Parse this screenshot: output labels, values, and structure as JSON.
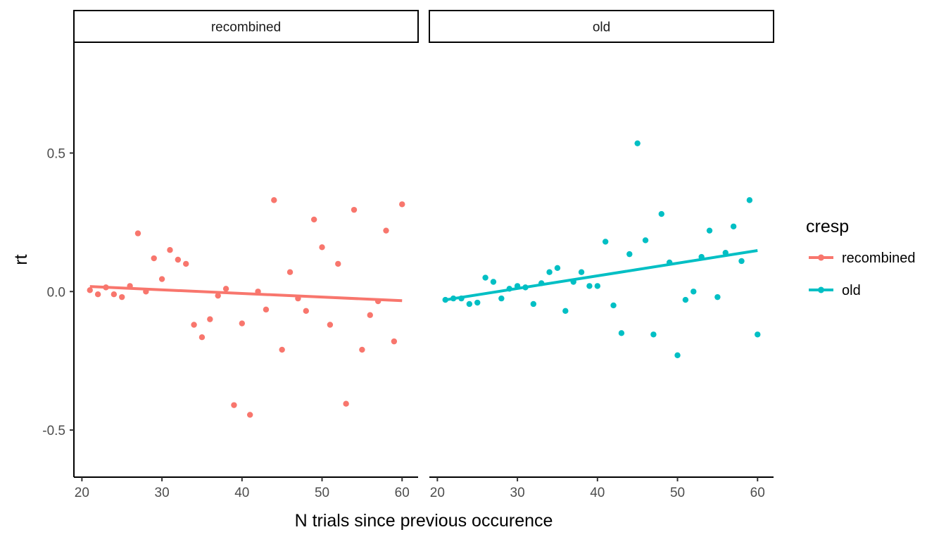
{
  "chart_data": {
    "type": "scatter",
    "xlabel": "N trials since previous occurence",
    "ylabel": "rt",
    "xlim": [
      19,
      62
    ],
    "ylim": [
      -0.67,
      0.9
    ],
    "x_ticks": [
      20,
      30,
      40,
      50,
      60
    ],
    "y_ticks": [
      -0.5,
      0.0,
      0.5
    ],
    "x_tick_labels": [
      "20",
      "30",
      "40",
      "50",
      "60"
    ],
    "y_tick_labels": [
      "-0.5",
      "0.0",
      "0.5"
    ],
    "grid": false,
    "legend_position": "right",
    "legend": {
      "title": "cresp",
      "entries": [
        {
          "label": "recombined",
          "color": "#F8766D"
        },
        {
          "label": "old",
          "color": "#00BFC4"
        }
      ]
    },
    "panels": [
      {
        "strip_label": "recombined",
        "series": "recombined",
        "color": "#F8766D",
        "points": [
          [
            21,
            0.005
          ],
          [
            22,
            -0.01
          ],
          [
            23,
            0.015
          ],
          [
            24,
            -0.01
          ],
          [
            25,
            -0.02
          ],
          [
            26,
            0.02
          ],
          [
            27,
            0.21
          ],
          [
            28,
            0.0
          ],
          [
            29,
            0.12
          ],
          [
            30,
            0.045
          ],
          [
            31,
            0.15
          ],
          [
            32,
            0.115
          ],
          [
            33,
            0.1
          ],
          [
            34,
            -0.12
          ],
          [
            35,
            -0.165
          ],
          [
            36,
            -0.1
          ],
          [
            37,
            -0.015
          ],
          [
            38,
            0.01
          ],
          [
            39,
            -0.41
          ],
          [
            40,
            -0.115
          ],
          [
            41,
            -0.445
          ],
          [
            42,
            0.0
          ],
          [
            43,
            -0.065
          ],
          [
            44,
            0.33
          ],
          [
            45,
            -0.21
          ],
          [
            46,
            0.07
          ],
          [
            47,
            -0.025
          ],
          [
            48,
            -0.07
          ],
          [
            49,
            0.26
          ],
          [
            50,
            0.16
          ],
          [
            51,
            -0.12
          ],
          [
            52,
            0.1
          ],
          [
            53,
            -0.405
          ],
          [
            54,
            0.295
          ],
          [
            55,
            -0.21
          ],
          [
            56,
            -0.085
          ],
          [
            57,
            -0.035
          ],
          [
            58,
            0.22
          ],
          [
            59,
            -0.18
          ],
          [
            60,
            0.315
          ]
        ],
        "trend": [
          [
            21,
            0.018
          ],
          [
            60,
            -0.033
          ]
        ]
      },
      {
        "strip_label": "old",
        "series": "old",
        "color": "#00BFC4",
        "points": [
          [
            21,
            -0.03
          ],
          [
            22,
            -0.025
          ],
          [
            23,
            -0.025
          ],
          [
            24,
            -0.045
          ],
          [
            25,
            -0.04
          ],
          [
            26,
            0.05
          ],
          [
            27,
            0.035
          ],
          [
            28,
            -0.025
          ],
          [
            29,
            0.01
          ],
          [
            30,
            0.02
          ],
          [
            31,
            0.015
          ],
          [
            32,
            -0.045
          ],
          [
            33,
            0.03
          ],
          [
            34,
            0.07
          ],
          [
            35,
            0.085
          ],
          [
            36,
            -0.07
          ],
          [
            37,
            0.035
          ],
          [
            38,
            0.07
          ],
          [
            39,
            0.02
          ],
          [
            40,
            0.02
          ],
          [
            41,
            0.18
          ],
          [
            42,
            -0.05
          ],
          [
            43,
            -0.15
          ],
          [
            44,
            0.135
          ],
          [
            45,
            0.535
          ],
          [
            46,
            0.185
          ],
          [
            47,
            -0.155
          ],
          [
            48,
            0.28
          ],
          [
            49,
            0.105
          ],
          [
            50,
            -0.23
          ],
          [
            51,
            -0.03
          ],
          [
            52,
            0.0
          ],
          [
            53,
            0.125
          ],
          [
            54,
            0.22
          ],
          [
            55,
            -0.02
          ],
          [
            56,
            0.14
          ],
          [
            57,
            0.235
          ],
          [
            58,
            0.11
          ],
          [
            59,
            0.33
          ],
          [
            60,
            -0.155
          ]
        ],
        "trend": [
          [
            21,
            -0.03
          ],
          [
            60,
            0.148
          ]
        ]
      }
    ]
  }
}
